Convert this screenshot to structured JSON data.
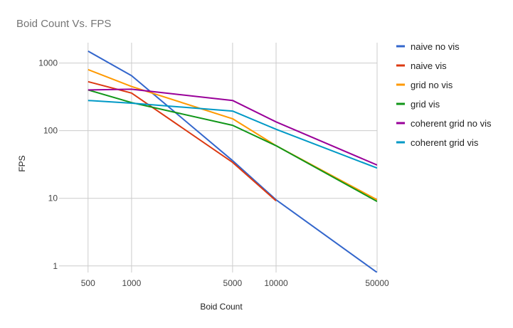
{
  "chart_data": {
    "type": "line",
    "title": "Boid Count Vs. FPS",
    "xlabel": "Boid Count",
    "ylabel": "FPS",
    "x": [
      500,
      1000,
      5000,
      10000,
      50000
    ],
    "x_tick_labels": [
      "500",
      "1000",
      "5000",
      "10000",
      "50000"
    ],
    "x_scale": "log",
    "xlim": [
      315,
      50000
    ],
    "y_scale": "log",
    "y_ticks": [
      1,
      10,
      100,
      1000
    ],
    "y_tick_labels": [
      "1",
      "10",
      "100",
      "1000"
    ],
    "ylim": [
      0.8,
      2000
    ],
    "grid": true,
    "legend_position": "right",
    "series": [
      {
        "name": "naive no vis",
        "color": "#3366cc",
        "values": [
          1500,
          650,
          36,
          9.5,
          0.8
        ]
      },
      {
        "name": "naive vis",
        "color": "#dc3912",
        "values": [
          530,
          360,
          34,
          9.2,
          null
        ]
      },
      {
        "name": "grid no vis",
        "color": "#ff9900",
        "values": [
          800,
          450,
          150,
          60,
          9.5
        ]
      },
      {
        "name": "grid vis",
        "color": "#109618",
        "values": [
          400,
          260,
          120,
          60,
          9
        ]
      },
      {
        "name": "coherent grid no vis",
        "color": "#990099",
        "values": [
          400,
          410,
          280,
          135,
          31
        ]
      },
      {
        "name": "coherent grid vis",
        "color": "#0099c6",
        "values": [
          280,
          255,
          195,
          105,
          28
        ]
      }
    ]
  }
}
